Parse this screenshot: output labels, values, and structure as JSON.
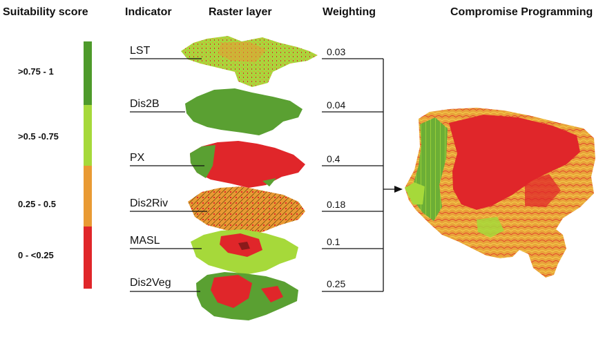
{
  "headers": {
    "suitability": "Suitability score",
    "indicator": "Indicator",
    "raster": "Raster layer",
    "weighting": "Weighting",
    "compromise": "Compromise Programming"
  },
  "legend": [
    {
      "label": ">0.75 - 1",
      "color": "#4e9a2b"
    },
    {
      "label": ">0.5  -0.75",
      "color": "#a6d93a"
    },
    {
      "label": "0.25 - 0.5",
      "color": "#e99a33"
    },
    {
      "label": "0 - <0.25",
      "color": "#e0262a"
    }
  ],
  "indicators": [
    {
      "name": "LST",
      "weight": "0.03"
    },
    {
      "name": "Dis2B",
      "weight": "0.04"
    },
    {
      "name": "PX",
      "weight": "0.4"
    },
    {
      "name": "Dis2Riv",
      "weight": "0.18"
    },
    {
      "name": "MASL",
      "weight": "0.1"
    },
    {
      "name": "Dis2Veg",
      "weight": "0.25"
    }
  ]
}
